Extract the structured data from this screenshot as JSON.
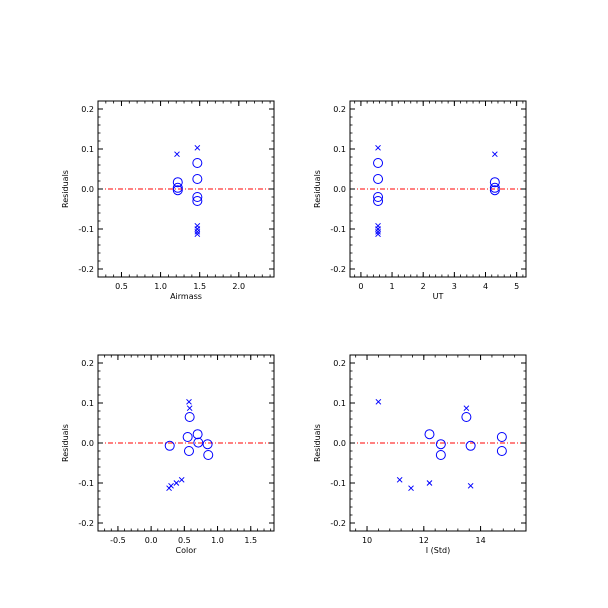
{
  "colors": {
    "marker": "#0000ff",
    "zero_line": "#ff0000",
    "axes": "#000000"
  },
  "chart_data": [
    {
      "type": "scatter",
      "xlabel": "Airmass",
      "ylabel": "Residuals",
      "xlim": [
        0.2,
        2.45
      ],
      "ylim": [
        -0.22,
        0.22
      ],
      "xticks": [
        0.5,
        1.0,
        1.5,
        2.0
      ],
      "xtick_labels": [
        "0.5",
        "1.0",
        "1.5",
        "2.0"
      ],
      "yticks": [
        -0.2,
        -0.1,
        0.0,
        0.1,
        0.2
      ],
      "ytick_labels": [
        "-0.2",
        "-0.1",
        "0.0",
        "0.1",
        "0.2"
      ],
      "reference_line": 0,
      "series": [
        {
          "marker": "circle",
          "points": [
            [
              1.22,
              0.017
            ],
            [
              1.22,
              0.003
            ],
            [
              1.22,
              -0.003
            ],
            [
              1.47,
              0.065
            ],
            [
              1.47,
              0.025
            ],
            [
              1.47,
              -0.02
            ],
            [
              1.47,
              -0.03
            ]
          ]
        },
        {
          "marker": "x",
          "points": [
            [
              1.21,
              0.087
            ],
            [
              1.47,
              0.103
            ],
            [
              1.47,
              -0.092
            ],
            [
              1.47,
              -0.1
            ],
            [
              1.47,
              -0.107
            ],
            [
              1.47,
              -0.113
            ]
          ]
        }
      ]
    },
    {
      "type": "scatter",
      "xlabel": "UT",
      "ylabel": "Residuals",
      "xlim": [
        -0.35,
        5.3
      ],
      "ylim": [
        -0.22,
        0.22
      ],
      "xticks": [
        0,
        1,
        2,
        3,
        4,
        5
      ],
      "xtick_labels": [
        "0",
        "1",
        "2",
        "3",
        "4",
        "5"
      ],
      "yticks": [
        -0.2,
        -0.1,
        0.0,
        0.1,
        0.2
      ],
      "ytick_labels": [
        "-0.2",
        "-0.1",
        "0.0",
        "0.1",
        "0.2"
      ],
      "reference_line": 0,
      "series": [
        {
          "marker": "circle",
          "points": [
            [
              0.55,
              0.065
            ],
            [
              0.55,
              0.025
            ],
            [
              0.55,
              -0.02
            ],
            [
              0.55,
              -0.03
            ],
            [
              4.3,
              0.017
            ],
            [
              4.3,
              0.003
            ],
            [
              4.3,
              -0.003
            ]
          ]
        },
        {
          "marker": "x",
          "points": [
            [
              0.55,
              0.103
            ],
            [
              0.55,
              -0.092
            ],
            [
              0.55,
              -0.1
            ],
            [
              0.55,
              -0.107
            ],
            [
              0.55,
              -0.113
            ],
            [
              4.3,
              0.087
            ]
          ]
        }
      ]
    },
    {
      "type": "scatter",
      "xlabel": "Color",
      "ylabel": "Residuals",
      "xlim": [
        -0.8,
        1.85
      ],
      "ylim": [
        -0.22,
        0.22
      ],
      "xticks": [
        -0.5,
        0.0,
        0.5,
        1.0,
        1.5
      ],
      "xtick_labels": [
        "-0.5",
        "0.0",
        "0.5",
        "1.0",
        "1.5"
      ],
      "yticks": [
        -0.2,
        -0.1,
        0.0,
        0.1,
        0.2
      ],
      "ytick_labels": [
        "-0.2",
        "-0.1",
        "0.0",
        "0.1",
        "0.2"
      ],
      "reference_line": 0,
      "series": [
        {
          "marker": "circle",
          "points": [
            [
              0.28,
              -0.007
            ],
            [
              0.55,
              0.015
            ],
            [
              0.57,
              -0.02
            ],
            [
              0.58,
              0.065
            ],
            [
              0.7,
              0.022
            ],
            [
              0.71,
              0.001
            ],
            [
              0.85,
              -0.003
            ],
            [
              0.86,
              -0.03
            ]
          ]
        },
        {
          "marker": "x",
          "points": [
            [
              0.27,
              -0.113
            ],
            [
              0.3,
              -0.107
            ],
            [
              0.38,
              -0.1
            ],
            [
              0.46,
              -0.092
            ],
            [
              0.57,
              0.103
            ],
            [
              0.58,
              0.087
            ]
          ]
        }
      ]
    },
    {
      "type": "scatter",
      "xlabel": "I (Std)",
      "ylabel": "Residuals",
      "xlim": [
        9.4,
        15.6
      ],
      "ylim": [
        -0.22,
        0.22
      ],
      "xticks": [
        10,
        12,
        14
      ],
      "xtick_labels": [
        "10",
        "12",
        "14"
      ],
      "yticks": [
        -0.2,
        -0.1,
        0.0,
        0.1,
        0.2
      ],
      "ytick_labels": [
        "-0.2",
        "-0.1",
        "0.0",
        "0.1",
        "0.2"
      ],
      "reference_line": 0,
      "series": [
        {
          "marker": "circle",
          "points": [
            [
              12.2,
              0.022
            ],
            [
              12.6,
              -0.003
            ],
            [
              12.6,
              -0.03
            ],
            [
              13.5,
              0.065
            ],
            [
              13.65,
              -0.007
            ],
            [
              14.75,
              0.015
            ],
            [
              14.75,
              -0.02
            ]
          ]
        },
        {
          "marker": "x",
          "points": [
            [
              10.4,
              0.103
            ],
            [
              11.15,
              -0.092
            ],
            [
              11.55,
              -0.113
            ],
            [
              12.2,
              -0.1
            ],
            [
              13.5,
              0.087
            ],
            [
              13.65,
              -0.107
            ]
          ]
        }
      ]
    }
  ]
}
